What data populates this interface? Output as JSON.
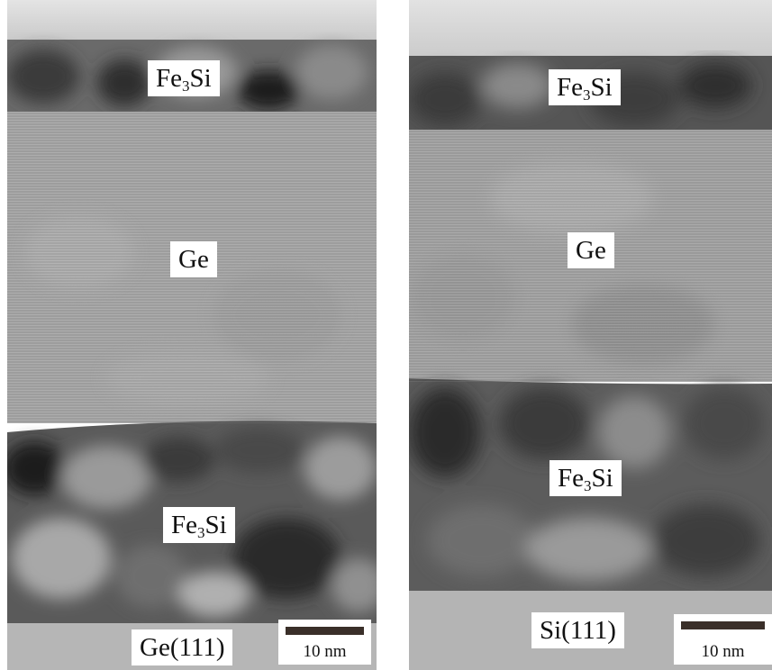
{
  "left_panel": {
    "layers": {
      "top_film": "Fe",
      "top_film_sub": "3",
      "top_film_suffix": "Si",
      "middle": "Ge",
      "bottom_film": "Fe",
      "bottom_film_sub": "3",
      "bottom_film_suffix": "Si",
      "substrate": "Ge(111)"
    },
    "scale_bar": "10 nm"
  },
  "right_panel": {
    "layers": {
      "top_film": "Fe",
      "top_film_sub": "3",
      "top_film_suffix": "Si",
      "middle": "Ge",
      "bottom_film": "Fe",
      "bottom_film_sub": "3",
      "bottom_film_suffix": "Si",
      "substrate": "Si(111)"
    },
    "scale_bar": "10 nm"
  },
  "colors": {
    "fe3si_dark": "#3e3e3e",
    "ge_gray": "#a7a7a7",
    "substrate_gray": "#b8b8b8",
    "cap_light": "#d8d8d8",
    "scale_bar": "#3a2f29"
  }
}
